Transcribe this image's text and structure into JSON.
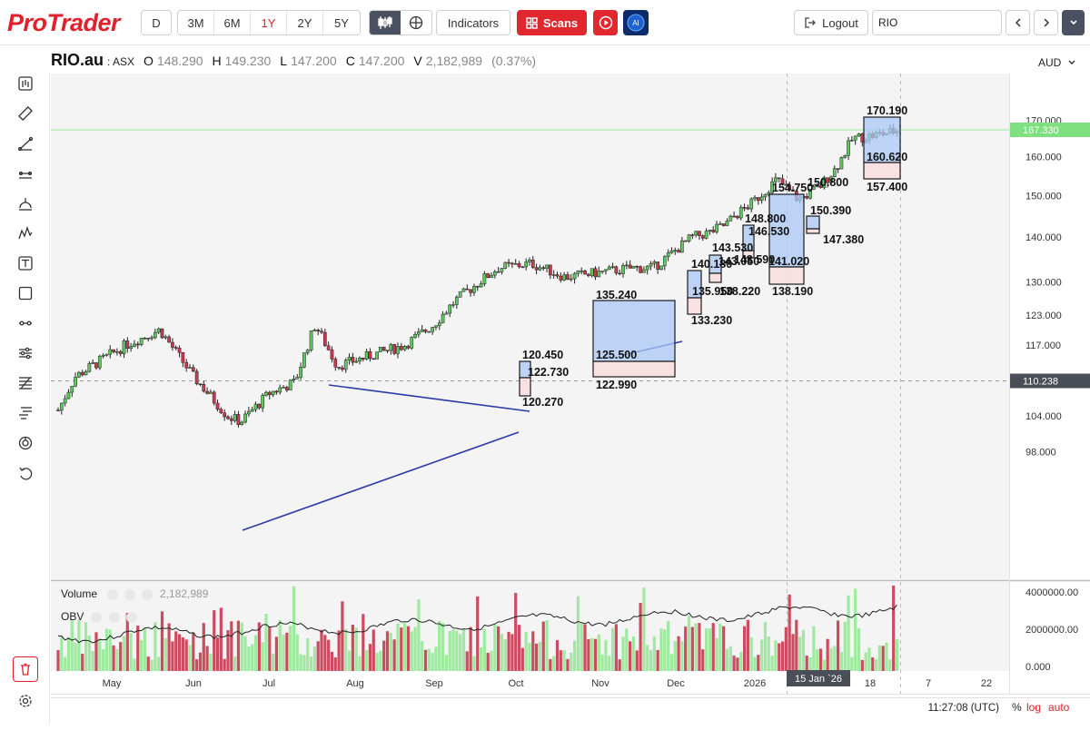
{
  "app": {
    "logo": "ProTrader"
  },
  "toolbar": {
    "period_label": "D",
    "ranges": [
      {
        "label": "3M",
        "active": false
      },
      {
        "label": "6M",
        "active": false
      },
      {
        "label": "1Y",
        "active": true
      },
      {
        "label": "2Y",
        "active": false
      },
      {
        "label": "5Y",
        "active": false
      }
    ],
    "indicators_label": "Indicators",
    "scans_label": "Scans",
    "ai_label": "AI",
    "logout_label": "Logout",
    "search_value": "RIO"
  },
  "quote": {
    "symbol": "RIO.au",
    "exchange": ": ASX",
    "open_label": "O",
    "open": "148.290",
    "high_label": "H",
    "high": "149.230",
    "low_label": "L",
    "low": "147.200",
    "close_label": "C",
    "close": "147.200",
    "volume_label": "V",
    "volume": "2,182,989",
    "change": "(0.37%)",
    "currency": "AUD"
  },
  "chart_data": {
    "type": "candlestick",
    "y_axis_ticks": [
      "170.000",
      "160.000",
      "150.000",
      "140.000",
      "130.000",
      "123.000",
      "117.000",
      "110.238",
      "104.000",
      "98.000"
    ],
    "price_labels": {
      "last": "167.330",
      "crosshair": "110.238"
    },
    "x_axis_ticks": [
      "May",
      "Jun",
      "Jul",
      "Aug",
      "Sep",
      "Oct",
      "Nov",
      "Dec",
      "2026",
      "15 Jan `26",
      "18",
      "7",
      "22"
    ],
    "box_labels": [
      "170.190",
      "160.620",
      "157.400",
      "154.750",
      "150.800",
      "150.390",
      "147.380",
      "148.800",
      "146.530",
      "143.530",
      "143.050",
      "143.590",
      "141.020",
      "140.180",
      "135.950",
      "138.220",
      "138.190",
      "135.240",
      "133.230",
      "125.500",
      "122.990",
      "120.450",
      "122.730",
      "120.270"
    ],
    "volume_axis_ticks": [
      "4000000.00",
      "2000000.00",
      "0.000"
    ],
    "volume_panel": {
      "volume_label": "Volume",
      "volume_value": "2,182,989",
      "obv_label": "OBV"
    }
  },
  "status_bar": {
    "time": "11:27:08 (UTC)",
    "pct": "%",
    "log": "log",
    "auto": "auto"
  },
  "icons": [
    "chart-icon",
    "ruler-icon",
    "trendline-icon",
    "hline-icon",
    "arc-icon",
    "pattern-icon",
    "text-icon",
    "rectangle-icon",
    "slider-icon",
    "sliders-icon",
    "fib-icon",
    "gann-icon",
    "magnet-icon",
    "undo-icon",
    "trash-icon",
    "settings-icon"
  ],
  "colors": {
    "brand": "#e0202a",
    "up": "#5cc95c",
    "down": "#c73a4f",
    "box_fill": "#c8daf4",
    "box_stroke": "#1a1a1a",
    "trend": "#2b3aa8"
  }
}
